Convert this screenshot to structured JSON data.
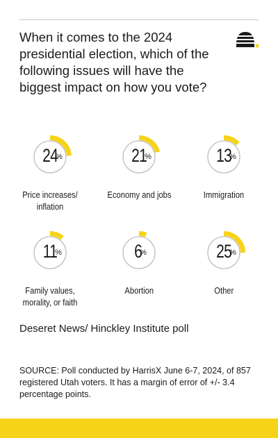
{
  "question": "When it comes to the 2024 presidential election, which of the following issues will have the biggest impact on how you vote?",
  "colors": {
    "accent": "#f6d318",
    "ring": "#bdbdbd",
    "text": "#1a1a1a"
  },
  "chart_data": {
    "type": "pie",
    "unit": "%",
    "categories": [
      "Price increases/ inflation",
      "Economy and jobs",
      "Immigration",
      "Family values, morality, or faith",
      "Abortion",
      "Other"
    ],
    "values": [
      24,
      21,
      13,
      11,
      6,
      25
    ]
  },
  "items": [
    {
      "value": "24",
      "label": "Price increases/ inflation"
    },
    {
      "value": "21",
      "label": "Economy and jobs"
    },
    {
      "value": "13",
      "label": "Immigration"
    },
    {
      "value": "11",
      "label": "Family values, morality, or faith"
    },
    {
      "value": "6",
      "label": "Abortion"
    },
    {
      "value": "25",
      "label": "Other"
    }
  ],
  "percent_sign": "%",
  "source_title": "Deseret News/ Hinckley Institute poll",
  "source_text": "SOURCE: Poll conducted by HarrisX June 6-7, 2024, of 857 registered Utah voters. It has a margin of error of +/- 3.4 percentage points.",
  "logo_icon": "beehive-icon"
}
